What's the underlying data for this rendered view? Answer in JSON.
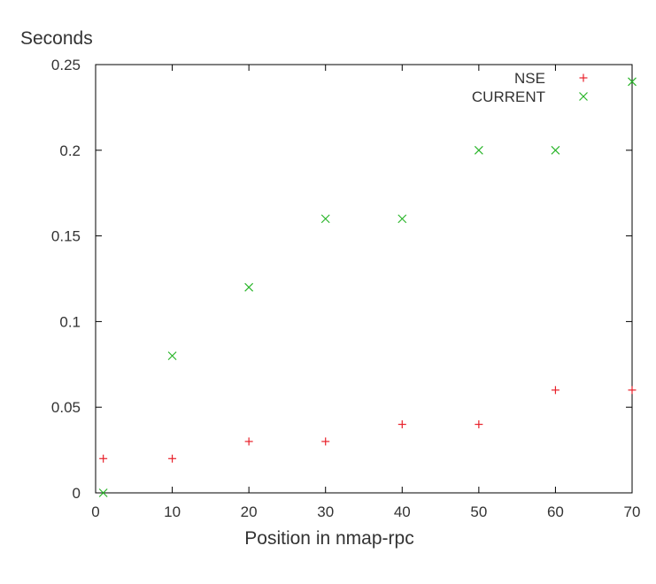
{
  "chart_data": {
    "type": "scatter",
    "title": "",
    "xlabel": "Position in nmap-rpc",
    "ylabel": "Seconds",
    "xlim": [
      0,
      70
    ],
    "ylim": [
      0,
      0.25
    ],
    "x_ticks": [
      0,
      10,
      20,
      30,
      40,
      50,
      60,
      70
    ],
    "x_tick_labels": [
      "0",
      "10",
      "20",
      "30",
      "40",
      "50",
      "60",
      "70"
    ],
    "y_ticks": [
      0,
      0.05,
      0.1,
      0.15,
      0.2,
      0.25
    ],
    "y_tick_labels": [
      "0",
      "0.05",
      "0.1",
      "0.15",
      "0.2",
      "0.25"
    ],
    "grid": false,
    "legend_position": "top-right",
    "series": [
      {
        "name": "NSE",
        "marker": "plus",
        "color": "#e8202a",
        "x": [
          1,
          10,
          20,
          30,
          40,
          50,
          60,
          70
        ],
        "y": [
          0.02,
          0.02,
          0.03,
          0.03,
          0.04,
          0.04,
          0.06,
          0.06
        ]
      },
      {
        "name": "CURRENT",
        "marker": "cross",
        "color": "#2ab52a",
        "x": [
          1,
          10,
          20,
          30,
          40,
          50,
          60,
          70
        ],
        "y": [
          0,
          0.08,
          0.12,
          0.16,
          0.16,
          0.2,
          0.2,
          0.24
        ]
      }
    ]
  }
}
